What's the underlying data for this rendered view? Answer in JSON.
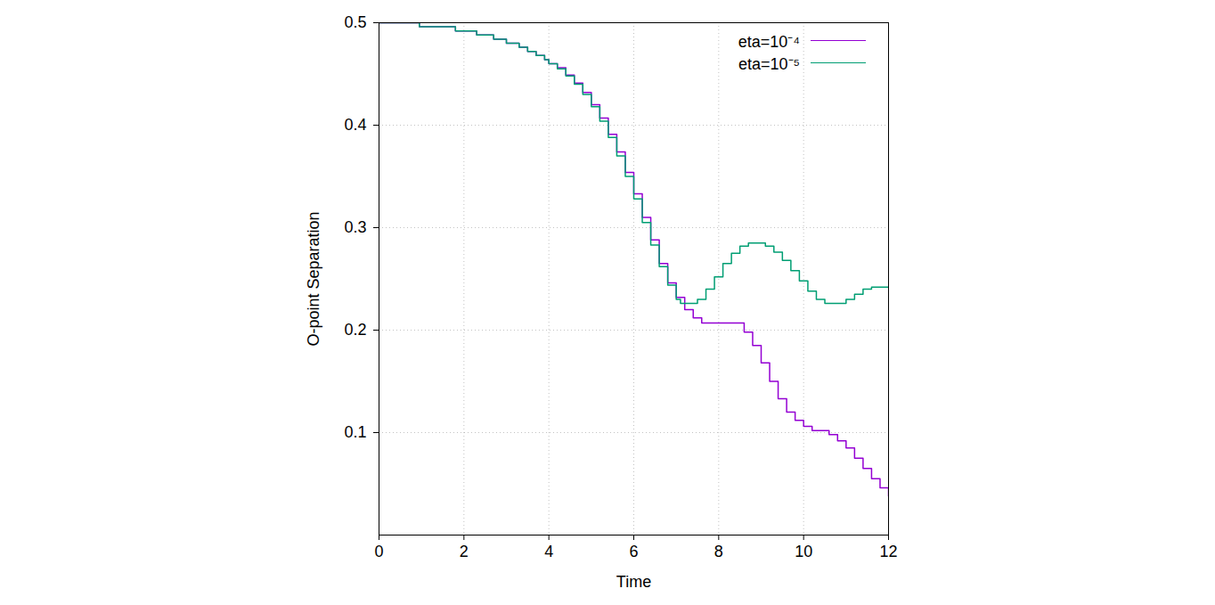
{
  "chart_data": {
    "type": "line",
    "x_label": "Time",
    "y_label": "O-point Separation",
    "xlim": [
      0,
      12
    ],
    "ylim": [
      0,
      0.5
    ],
    "xticks": [
      0,
      2,
      4,
      6,
      8,
      10,
      12
    ],
    "yticks": [
      0.1,
      0.2,
      0.3,
      0.4,
      0.5
    ],
    "grid": true,
    "legend": "top-right",
    "line_style": "step",
    "series": [
      {
        "name": "eta=10⁻⁴",
        "color": "#9400d3",
        "x": [
          0,
          0.95,
          1.8,
          2.3,
          2.7,
          3.0,
          3.3,
          3.5,
          3.7,
          3.9,
          4.0,
          4.2,
          4.4,
          4.6,
          4.8,
          5.0,
          5.2,
          5.4,
          5.6,
          5.8,
          6.0,
          6.2,
          6.4,
          6.6,
          6.8,
          7.0,
          7.2,
          7.4,
          7.6,
          8.4,
          8.6,
          8.8,
          9.0,
          9.2,
          9.4,
          9.6,
          9.8,
          10.0,
          10.2,
          10.6,
          10.8,
          11.0,
          11.2,
          11.4,
          11.6,
          11.8,
          12.0
        ],
        "values": [
          0.5,
          0.496,
          0.492,
          0.488,
          0.484,
          0.48,
          0.476,
          0.472,
          0.468,
          0.464,
          0.46,
          0.456,
          0.449,
          0.441,
          0.432,
          0.42,
          0.407,
          0.391,
          0.374,
          0.354,
          0.333,
          0.31,
          0.288,
          0.265,
          0.246,
          0.232,
          0.22,
          0.212,
          0.207,
          0.207,
          0.198,
          0.185,
          0.168,
          0.15,
          0.133,
          0.12,
          0.112,
          0.106,
          0.102,
          0.098,
          0.092,
          0.085,
          0.075,
          0.065,
          0.055,
          0.046,
          0.038
        ]
      },
      {
        "name": "eta=10⁻⁵",
        "color": "#009e73",
        "x": [
          0,
          0.95,
          1.8,
          2.3,
          2.7,
          3.0,
          3.3,
          3.5,
          3.7,
          3.9,
          4.0,
          4.2,
          4.4,
          4.6,
          4.8,
          5.0,
          5.2,
          5.4,
          5.6,
          5.8,
          6.0,
          6.2,
          6.4,
          6.6,
          6.8,
          7.0,
          7.1,
          7.5,
          7.7,
          7.9,
          8.1,
          8.3,
          8.5,
          8.7,
          9.1,
          9.3,
          9.5,
          9.7,
          9.9,
          10.1,
          10.3,
          10.5,
          11.0,
          11.2,
          11.4,
          11.6,
          12.0
        ],
        "values": [
          0.5,
          0.496,
          0.492,
          0.488,
          0.484,
          0.48,
          0.476,
          0.472,
          0.468,
          0.464,
          0.46,
          0.455,
          0.448,
          0.44,
          0.43,
          0.418,
          0.404,
          0.388,
          0.37,
          0.35,
          0.328,
          0.305,
          0.283,
          0.262,
          0.244,
          0.23,
          0.226,
          0.23,
          0.24,
          0.252,
          0.265,
          0.275,
          0.282,
          0.285,
          0.282,
          0.276,
          0.268,
          0.258,
          0.248,
          0.238,
          0.23,
          0.226,
          0.23,
          0.235,
          0.24,
          0.242,
          0.242
        ]
      }
    ]
  }
}
